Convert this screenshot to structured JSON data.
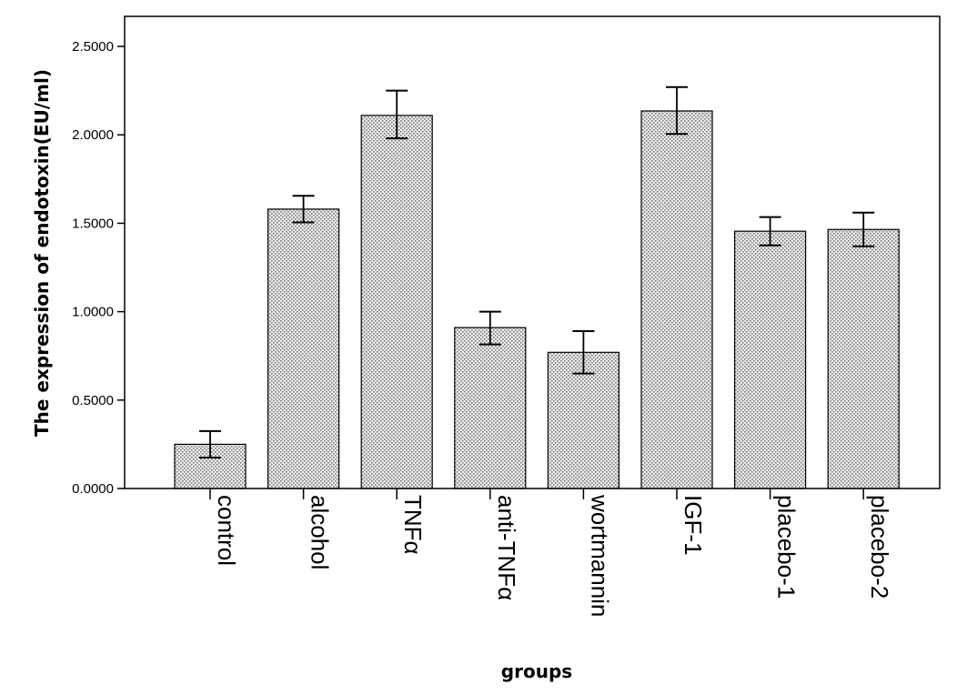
{
  "chart_data": {
    "type": "bar",
    "xlabel": "groups",
    "ylabel": "The expression  of endotoxin(EU/ml)",
    "ylim": [
      0,
      2.5
    ],
    "yticks": [
      "0.0000",
      "0.5000",
      "1.0000",
      "1.5000",
      "2.0000",
      "2.5000"
    ],
    "grid": false,
    "error_bars": true,
    "colors": {
      "bar_fill": "#e8e8e8",
      "bar_dots": "#8c8c8c",
      "stroke": "#000000"
    },
    "categories": [
      "control",
      "alcohol",
      "TNFα",
      "anti-TNFα",
      "wortmannin",
      "IGF-1",
      "placebo-1",
      "placebo-2"
    ],
    "values": [
      0.25,
      1.58,
      2.11,
      0.91,
      0.77,
      2.135,
      1.455,
      1.465
    ],
    "error_low": [
      0.175,
      1.505,
      1.98,
      0.815,
      0.65,
      2.005,
      1.375,
      1.37
    ],
    "error_high": [
      0.325,
      1.655,
      2.25,
      1.0,
      0.89,
      2.27,
      1.535,
      1.56
    ]
  }
}
